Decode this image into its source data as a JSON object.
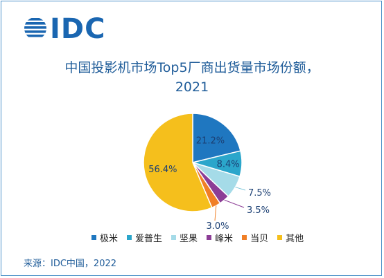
{
  "logo": {
    "text": "IDC"
  },
  "chart_data": {
    "type": "pie",
    "title": "中国投影机市场Top5厂商出货量市场份额，",
    "subtitle": "2021",
    "categories": [
      "极米",
      "爱普生",
      "坚果",
      "峰米",
      "当贝",
      "其他"
    ],
    "values": [
      21.2,
      8.4,
      7.5,
      3.5,
      3.0,
      56.4
    ],
    "labels": [
      "21.2%",
      "8.4%",
      "7.5%",
      "3.5%",
      "3.0%",
      "56.4%"
    ],
    "colors": [
      "#1f77c0",
      "#2ba6cb",
      "#a5dbe8",
      "#8c3d96",
      "#f07f26",
      "#f5bf1c"
    ],
    "legend_position": "bottom"
  },
  "source": "来源：IDC中国，2022"
}
